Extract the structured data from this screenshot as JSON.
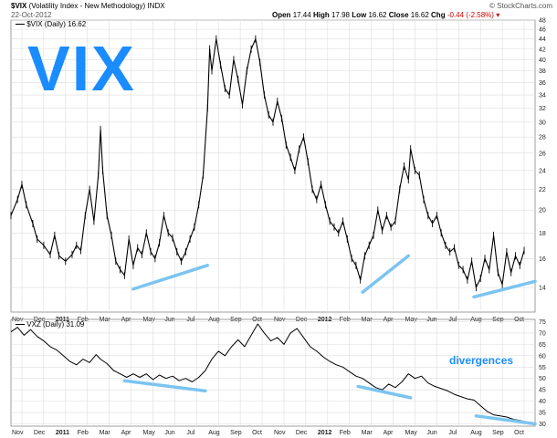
{
  "header": {
    "symbol": "$VIX",
    "description": "(Volatility Index - New Methodology)",
    "exchange": "INDX",
    "date": "22-Oct-2012",
    "open_label": "Open",
    "open": "17.44",
    "high_label": "High",
    "high": "17.98",
    "low_label": "Low",
    "low": "16.62",
    "close_label": "Close",
    "close": "16.62",
    "chg_label": "Chg",
    "chg": "-0.44 (-2.58%)",
    "chg_color": "#cc0000",
    "source": "© StockCharts.com"
  },
  "overlay_title": "VIX",
  "annotation": "divergences",
  "colors": {
    "accent": "#1a8cff",
    "trendline": "#7cc4f0",
    "price": "#000000",
    "grid": "#dddddd"
  },
  "chart_data": [
    {
      "type": "line",
      "name": "$VIX (Daily) 16.62",
      "legend": "$VIX (Daily) 16.62",
      "y_scale": "log",
      "ylim": [
        12.5,
        48
      ],
      "yticks": [
        14,
        16,
        18,
        20,
        22,
        24,
        26,
        28,
        30,
        32,
        34,
        36,
        38,
        40,
        42,
        44,
        46,
        48
      ],
      "x_months": [
        "Nov",
        "Dec",
        "2011",
        "Feb",
        "Mar",
        "Apr",
        "May",
        "Jun",
        "Jul",
        "Aug",
        "Sep",
        "Oct",
        "Nov",
        "Dec",
        "2012",
        "Feb",
        "Mar",
        "Apr",
        "May",
        "Jun",
        "Jul",
        "Aug",
        "Sep",
        "Oct"
      ],
      "x_index_range": [
        0,
        24
      ],
      "values": [
        [
          0.0,
          19.5
        ],
        [
          0.3,
          21.0
        ],
        [
          0.5,
          22.5
        ],
        [
          0.7,
          20.5
        ],
        [
          1.0,
          18.8
        ],
        [
          1.2,
          17.5
        ],
        [
          1.5,
          17.0
        ],
        [
          1.8,
          16.3
        ],
        [
          2.0,
          17.8
        ],
        [
          2.2,
          16.2
        ],
        [
          2.5,
          15.8
        ],
        [
          2.8,
          16.3
        ],
        [
          3.0,
          17.0
        ],
        [
          3.2,
          16.6
        ],
        [
          3.4,
          19.5
        ],
        [
          3.6,
          22.0
        ],
        [
          3.8,
          19.0
        ],
        [
          4.0,
          23.5
        ],
        [
          4.1,
          29.0
        ],
        [
          4.2,
          24.0
        ],
        [
          4.4,
          19.5
        ],
        [
          4.6,
          17.8
        ],
        [
          4.8,
          15.8
        ],
        [
          5.0,
          15.2
        ],
        [
          5.2,
          14.8
        ],
        [
          5.4,
          17.5
        ],
        [
          5.6,
          15.5
        ],
        [
          5.8,
          16.8
        ],
        [
          6.0,
          16.3
        ],
        [
          6.2,
          18.0
        ],
        [
          6.4,
          16.5
        ],
        [
          6.6,
          16.0
        ],
        [
          6.8,
          17.2
        ],
        [
          7.0,
          19.5
        ],
        [
          7.2,
          18.0
        ],
        [
          7.4,
          17.6
        ],
        [
          7.6,
          16.5
        ],
        [
          7.8,
          15.8
        ],
        [
          8.0,
          16.5
        ],
        [
          8.2,
          17.5
        ],
        [
          8.4,
          18.5
        ],
        [
          8.6,
          20.5
        ],
        [
          8.8,
          23.5
        ],
        [
          9.0,
          32.0
        ],
        [
          9.1,
          42.0
        ],
        [
          9.2,
          38.0
        ],
        [
          9.4,
          44.0
        ],
        [
          9.6,
          39.0
        ],
        [
          9.8,
          35.0
        ],
        [
          10.0,
          34.0
        ],
        [
          10.2,
          40.0
        ],
        [
          10.4,
          36.5
        ],
        [
          10.6,
          32.5
        ],
        [
          10.8,
          38.0
        ],
        [
          11.0,
          42.0
        ],
        [
          11.2,
          44.0
        ],
        [
          11.4,
          39.5
        ],
        [
          11.6,
          34.0
        ],
        [
          11.8,
          31.0
        ],
        [
          12.0,
          30.0
        ],
        [
          12.2,
          33.0
        ],
        [
          12.4,
          30.5
        ],
        [
          12.6,
          27.0
        ],
        [
          12.8,
          25.5
        ],
        [
          13.0,
          24.0
        ],
        [
          13.2,
          26.5
        ],
        [
          13.4,
          28.0
        ],
        [
          13.6,
          25.0
        ],
        [
          13.8,
          22.0
        ],
        [
          14.0,
          21.0
        ],
        [
          14.2,
          22.5
        ],
        [
          14.4,
          20.5
        ],
        [
          14.6,
          19.0
        ],
        [
          14.8,
          18.5
        ],
        [
          15.0,
          18.0
        ],
        [
          15.2,
          19.0
        ],
        [
          15.4,
          17.5
        ],
        [
          15.6,
          16.0
        ],
        [
          15.8,
          15.5
        ],
        [
          16.0,
          14.5
        ],
        [
          16.2,
          16.2
        ],
        [
          16.4,
          17.0
        ],
        [
          16.6,
          17.8
        ],
        [
          16.8,
          20.0
        ],
        [
          17.0,
          18.2
        ],
        [
          17.2,
          19.5
        ],
        [
          17.4,
          18.5
        ],
        [
          17.6,
          19.0
        ],
        [
          17.8,
          22.0
        ],
        [
          18.0,
          24.5
        ],
        [
          18.2,
          23.0
        ],
        [
          18.3,
          26.5
        ],
        [
          18.5,
          24.0
        ],
        [
          18.7,
          23.5
        ],
        [
          18.9,
          21.0
        ],
        [
          19.1,
          19.5
        ],
        [
          19.3,
          18.8
        ],
        [
          19.5,
          19.5
        ],
        [
          19.7,
          18.0
        ],
        [
          19.9,
          17.0
        ],
        [
          20.1,
          16.5
        ],
        [
          20.3,
          16.8
        ],
        [
          20.5,
          15.5
        ],
        [
          20.7,
          15.2
        ],
        [
          20.9,
          14.5
        ],
        [
          21.1,
          15.8
        ],
        [
          21.3,
          14.0
        ],
        [
          21.5,
          14.6
        ],
        [
          21.7,
          16.0
        ],
        [
          21.9,
          15.2
        ],
        [
          22.1,
          17.8
        ],
        [
          22.3,
          15.0
        ],
        [
          22.5,
          14.2
        ],
        [
          22.7,
          16.5
        ],
        [
          22.9,
          15.0
        ],
        [
          23.1,
          16.2
        ],
        [
          23.3,
          15.5
        ],
        [
          23.5,
          16.6
        ]
      ],
      "trendlines": [
        {
          "from": [
            5.6,
            13.9
          ],
          "to": [
            9.0,
            15.5
          ]
        },
        {
          "from": [
            16.1,
            13.7
          ],
          "to": [
            18.2,
            16.2
          ]
        },
        {
          "from": [
            21.2,
            13.4
          ],
          "to": [
            24.0,
            14.4
          ]
        }
      ]
    },
    {
      "type": "line",
      "name": "VXZ (Daily) 31.09",
      "legend": "VXZ (Daily) 31.09",
      "ylim": [
        29,
        76
      ],
      "yticks": [
        30,
        35,
        40,
        45,
        50,
        55,
        60,
        65,
        70,
        75
      ],
      "x_months": [
        "Nov",
        "Dec",
        "2011",
        "Feb",
        "Mar",
        "Apr",
        "May",
        "Jun",
        "Jul",
        "Aug",
        "Sep",
        "Oct",
        "Nov",
        "Dec",
        "2012",
        "Feb",
        "Mar",
        "Apr",
        "May",
        "Jun",
        "Jul",
        "Aug",
        "Sep",
        "Oct"
      ],
      "x_index_range": [
        0,
        24
      ],
      "values": [
        [
          0.0,
          70.5
        ],
        [
          0.3,
          72.5
        ],
        [
          0.6,
          69.0
        ],
        [
          0.9,
          71.5
        ],
        [
          1.2,
          68.5
        ],
        [
          1.5,
          66.5
        ],
        [
          1.8,
          64.0
        ],
        [
          2.1,
          62.5
        ],
        [
          2.4,
          60.0
        ],
        [
          2.7,
          57.5
        ],
        [
          3.0,
          56.0
        ],
        [
          3.3,
          58.5
        ],
        [
          3.6,
          57.0
        ],
        [
          3.9,
          60.5
        ],
        [
          4.1,
          58.5
        ],
        [
          4.4,
          56.5
        ],
        [
          4.7,
          53.5
        ],
        [
          5.0,
          52.0
        ],
        [
          5.3,
          50.5
        ],
        [
          5.6,
          52.0
        ],
        [
          5.9,
          50.5
        ],
        [
          6.2,
          52.0
        ],
        [
          6.5,
          49.5
        ],
        [
          6.8,
          51.5
        ],
        [
          7.1,
          50.0
        ],
        [
          7.4,
          51.0
        ],
        [
          7.7,
          49.0
        ],
        [
          8.0,
          50.0
        ],
        [
          8.3,
          48.5
        ],
        [
          8.6,
          50.5
        ],
        [
          8.9,
          53.5
        ],
        [
          9.2,
          58.5
        ],
        [
          9.5,
          62.0
        ],
        [
          9.8,
          60.0
        ],
        [
          10.1,
          64.0
        ],
        [
          10.4,
          67.0
        ],
        [
          10.7,
          64.0
        ],
        [
          11.0,
          69.0
        ],
        [
          11.3,
          74.0
        ],
        [
          11.6,
          70.0
        ],
        [
          11.9,
          66.5
        ],
        [
          12.2,
          68.0
        ],
        [
          12.5,
          65.0
        ],
        [
          12.8,
          70.0
        ],
        [
          13.1,
          72.0
        ],
        [
          13.4,
          68.0
        ],
        [
          13.7,
          64.0
        ],
        [
          14.0,
          62.0
        ],
        [
          14.3,
          59.5
        ],
        [
          14.6,
          57.5
        ],
        [
          14.9,
          56.0
        ],
        [
          15.2,
          55.0
        ],
        [
          15.5,
          53.0
        ],
        [
          15.8,
          51.0
        ],
        [
          16.1,
          50.0
        ],
        [
          16.4,
          48.0
        ],
        [
          16.7,
          46.0
        ],
        [
          17.0,
          45.0
        ],
        [
          17.3,
          47.5
        ],
        [
          17.6,
          46.0
        ],
        [
          17.9,
          48.5
        ],
        [
          18.2,
          52.0
        ],
        [
          18.5,
          50.0
        ],
        [
          18.8,
          51.0
        ],
        [
          19.1,
          48.0
        ],
        [
          19.4,
          46.5
        ],
        [
          19.7,
          45.5
        ],
        [
          20.0,
          44.5
        ],
        [
          20.3,
          43.0
        ],
        [
          20.6,
          42.0
        ],
        [
          20.9,
          41.0
        ],
        [
          21.2,
          40.5
        ],
        [
          21.5,
          38.0
        ],
        [
          21.8,
          35.5
        ],
        [
          22.1,
          34.0
        ],
        [
          22.4,
          33.5
        ],
        [
          22.7,
          33.0
        ],
        [
          23.0,
          32.0
        ],
        [
          23.3,
          31.5
        ],
        [
          23.5,
          31.1
        ]
      ],
      "trendlines": [
        {
          "from": [
            5.2,
            49.0
          ],
          "to": [
            8.9,
            44.5
          ]
        },
        {
          "from": [
            15.9,
            46.5
          ],
          "to": [
            18.3,
            41.5
          ]
        },
        {
          "from": [
            21.3,
            33.5
          ],
          "to": [
            24.0,
            30.0
          ]
        }
      ]
    }
  ]
}
